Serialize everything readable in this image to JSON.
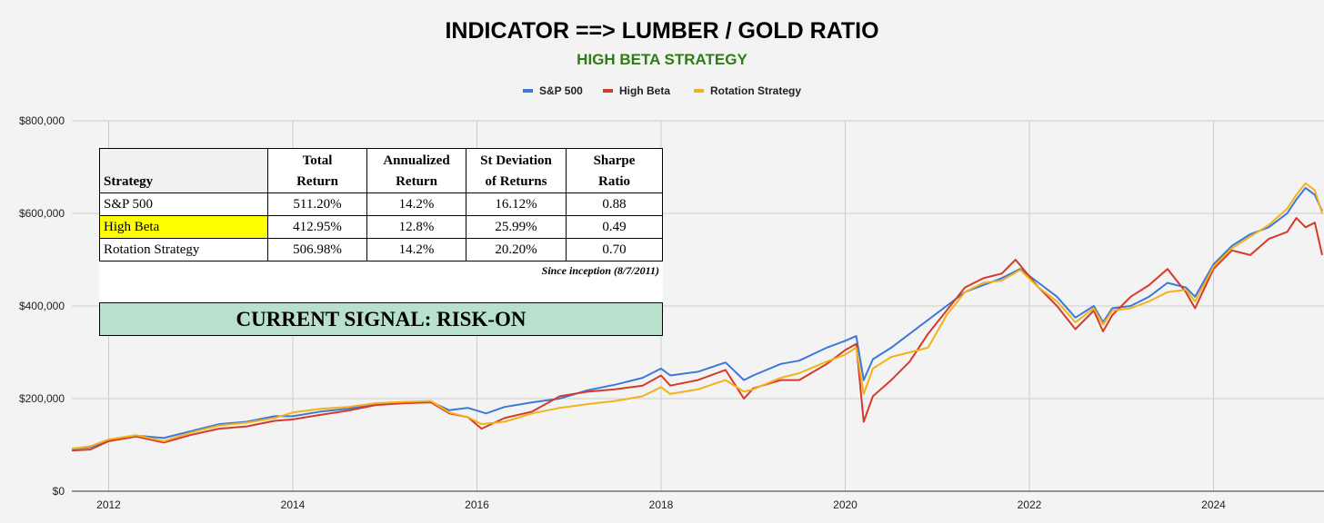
{
  "chart_data": {
    "type": "line",
    "title": "INDICATOR ==> LUMBER / GOLD RATIO",
    "subtitle": "HIGH BETA STRATEGY",
    "xlabel": "",
    "ylabel": "",
    "ylim": [
      0,
      800000
    ],
    "y_ticks": [
      0,
      200000,
      400000,
      600000,
      800000
    ],
    "y_tick_labels": [
      "$0",
      "$200,000",
      "$400,000",
      "$600,000",
      "$800,000"
    ],
    "xlim": [
      2011.6,
      2025.2
    ],
    "x_ticks": [
      2012,
      2014,
      2016,
      2018,
      2020,
      2022,
      2024
    ],
    "x_tick_labels": [
      "2012",
      "2014",
      "2016",
      "2018",
      "2020",
      "2022",
      "2024"
    ],
    "grid": true,
    "legend_position": "top",
    "series": [
      {
        "name": "S&P 500",
        "color": "#3c78d8",
        "points": [
          [
            2011.6,
            92000
          ],
          [
            2011.8,
            95000
          ],
          [
            2012.0,
            110000
          ],
          [
            2012.3,
            120000
          ],
          [
            2012.6,
            115000
          ],
          [
            2012.9,
            130000
          ],
          [
            2013.2,
            145000
          ],
          [
            2013.5,
            150000
          ],
          [
            2013.8,
            162000
          ],
          [
            2014.0,
            162000
          ],
          [
            2014.3,
            172000
          ],
          [
            2014.6,
            178000
          ],
          [
            2014.9,
            188000
          ],
          [
            2015.2,
            192000
          ],
          [
            2015.5,
            193000
          ],
          [
            2015.7,
            175000
          ],
          [
            2015.9,
            180000
          ],
          [
            2016.1,
            168000
          ],
          [
            2016.3,
            182000
          ],
          [
            2016.6,
            192000
          ],
          [
            2016.9,
            200000
          ],
          [
            2017.2,
            218000
          ],
          [
            2017.5,
            230000
          ],
          [
            2017.8,
            245000
          ],
          [
            2018.0,
            265000
          ],
          [
            2018.1,
            250000
          ],
          [
            2018.4,
            258000
          ],
          [
            2018.7,
            278000
          ],
          [
            2018.9,
            240000
          ],
          [
            2019.0,
            250000
          ],
          [
            2019.3,
            275000
          ],
          [
            2019.5,
            282000
          ],
          [
            2019.8,
            310000
          ],
          [
            2020.0,
            325000
          ],
          [
            2020.12,
            335000
          ],
          [
            2020.2,
            240000
          ],
          [
            2020.3,
            285000
          ],
          [
            2020.5,
            310000
          ],
          [
            2020.7,
            340000
          ],
          [
            2020.9,
            370000
          ],
          [
            2021.1,
            400000
          ],
          [
            2021.3,
            430000
          ],
          [
            2021.5,
            445000
          ],
          [
            2021.7,
            460000
          ],
          [
            2021.9,
            480000
          ],
          [
            2022.1,
            450000
          ],
          [
            2022.3,
            420000
          ],
          [
            2022.5,
            375000
          ],
          [
            2022.7,
            400000
          ],
          [
            2022.8,
            365000
          ],
          [
            2022.9,
            395000
          ],
          [
            2023.1,
            400000
          ],
          [
            2023.3,
            420000
          ],
          [
            2023.5,
            450000
          ],
          [
            2023.7,
            440000
          ],
          [
            2023.8,
            420000
          ],
          [
            2024.0,
            490000
          ],
          [
            2024.2,
            530000
          ],
          [
            2024.4,
            555000
          ],
          [
            2024.6,
            570000
          ],
          [
            2024.8,
            600000
          ],
          [
            2024.9,
            630000
          ],
          [
            2025.0,
            655000
          ],
          [
            2025.1,
            640000
          ],
          [
            2025.18,
            605000
          ]
        ]
      },
      {
        "name": "High Beta",
        "color": "#d63a2a",
        "points": [
          [
            2011.6,
            88000
          ],
          [
            2011.8,
            90000
          ],
          [
            2012.0,
            108000
          ],
          [
            2012.3,
            118000
          ],
          [
            2012.6,
            105000
          ],
          [
            2012.9,
            122000
          ],
          [
            2013.2,
            135000
          ],
          [
            2013.5,
            140000
          ],
          [
            2013.8,
            152000
          ],
          [
            2014.0,
            155000
          ],
          [
            2014.3,
            165000
          ],
          [
            2014.6,
            174000
          ],
          [
            2014.9,
            186000
          ],
          [
            2015.2,
            190000
          ],
          [
            2015.5,
            192000
          ],
          [
            2015.7,
            168000
          ],
          [
            2015.9,
            160000
          ],
          [
            2016.05,
            135000
          ],
          [
            2016.3,
            158000
          ],
          [
            2016.6,
            172000
          ],
          [
            2016.9,
            205000
          ],
          [
            2017.2,
            215000
          ],
          [
            2017.5,
            220000
          ],
          [
            2017.8,
            228000
          ],
          [
            2018.0,
            250000
          ],
          [
            2018.1,
            228000
          ],
          [
            2018.4,
            240000
          ],
          [
            2018.7,
            262000
          ],
          [
            2018.9,
            200000
          ],
          [
            2019.0,
            222000
          ],
          [
            2019.3,
            240000
          ],
          [
            2019.5,
            240000
          ],
          [
            2019.8,
            275000
          ],
          [
            2020.0,
            305000
          ],
          [
            2020.12,
            318000
          ],
          [
            2020.2,
            150000
          ],
          [
            2020.3,
            205000
          ],
          [
            2020.5,
            240000
          ],
          [
            2020.7,
            280000
          ],
          [
            2020.9,
            340000
          ],
          [
            2021.1,
            390000
          ],
          [
            2021.3,
            440000
          ],
          [
            2021.5,
            460000
          ],
          [
            2021.7,
            470000
          ],
          [
            2021.85,
            500000
          ],
          [
            2022.1,
            440000
          ],
          [
            2022.3,
            400000
          ],
          [
            2022.5,
            350000
          ],
          [
            2022.7,
            390000
          ],
          [
            2022.8,
            345000
          ],
          [
            2022.9,
            380000
          ],
          [
            2023.1,
            420000
          ],
          [
            2023.3,
            445000
          ],
          [
            2023.5,
            480000
          ],
          [
            2023.7,
            430000
          ],
          [
            2023.8,
            395000
          ],
          [
            2024.0,
            480000
          ],
          [
            2024.2,
            520000
          ],
          [
            2024.4,
            510000
          ],
          [
            2024.6,
            545000
          ],
          [
            2024.8,
            560000
          ],
          [
            2024.9,
            590000
          ],
          [
            2025.0,
            570000
          ],
          [
            2025.1,
            580000
          ],
          [
            2025.18,
            510000
          ]
        ]
      },
      {
        "name": "Rotation Strategy",
        "color": "#f2b21b",
        "points": [
          [
            2011.6,
            92000
          ],
          [
            2011.8,
            97000
          ],
          [
            2012.0,
            112000
          ],
          [
            2012.3,
            121000
          ],
          [
            2012.6,
            108000
          ],
          [
            2012.9,
            127000
          ],
          [
            2013.2,
            142000
          ],
          [
            2013.5,
            148000
          ],
          [
            2013.8,
            158000
          ],
          [
            2014.0,
            170000
          ],
          [
            2014.3,
            178000
          ],
          [
            2014.6,
            182000
          ],
          [
            2014.9,
            190000
          ],
          [
            2015.2,
            193000
          ],
          [
            2015.5,
            195000
          ],
          [
            2015.7,
            170000
          ],
          [
            2015.9,
            160000
          ],
          [
            2016.05,
            145000
          ],
          [
            2016.3,
            150000
          ],
          [
            2016.6,
            168000
          ],
          [
            2016.9,
            180000
          ],
          [
            2017.2,
            188000
          ],
          [
            2017.5,
            195000
          ],
          [
            2017.8,
            205000
          ],
          [
            2018.0,
            225000
          ],
          [
            2018.1,
            210000
          ],
          [
            2018.4,
            220000
          ],
          [
            2018.7,
            240000
          ],
          [
            2018.9,
            215000
          ],
          [
            2019.0,
            220000
          ],
          [
            2019.3,
            245000
          ],
          [
            2019.5,
            255000
          ],
          [
            2019.8,
            280000
          ],
          [
            2020.0,
            295000
          ],
          [
            2020.12,
            310000
          ],
          [
            2020.2,
            210000
          ],
          [
            2020.3,
            265000
          ],
          [
            2020.5,
            290000
          ],
          [
            2020.7,
            300000
          ],
          [
            2020.9,
            310000
          ],
          [
            2021.1,
            380000
          ],
          [
            2021.3,
            430000
          ],
          [
            2021.5,
            450000
          ],
          [
            2021.7,
            455000
          ],
          [
            2021.9,
            478000
          ],
          [
            2022.1,
            440000
          ],
          [
            2022.3,
            410000
          ],
          [
            2022.5,
            365000
          ],
          [
            2022.7,
            395000
          ],
          [
            2022.8,
            360000
          ],
          [
            2022.9,
            390000
          ],
          [
            2023.1,
            395000
          ],
          [
            2023.3,
            410000
          ],
          [
            2023.5,
            430000
          ],
          [
            2023.7,
            435000
          ],
          [
            2023.8,
            410000
          ],
          [
            2024.0,
            485000
          ],
          [
            2024.2,
            525000
          ],
          [
            2024.4,
            550000
          ],
          [
            2024.6,
            575000
          ],
          [
            2024.8,
            610000
          ],
          [
            2024.9,
            640000
          ],
          [
            2025.0,
            665000
          ],
          [
            2025.1,
            650000
          ],
          [
            2025.18,
            600000
          ]
        ]
      }
    ]
  },
  "table": {
    "headers": [
      [
        "",
        "Strategy"
      ],
      [
        "Total",
        "Return"
      ],
      [
        "Annualized",
        "Return"
      ],
      [
        "St Deviation",
        "of Returns"
      ],
      [
        "Sharpe",
        "Ratio"
      ]
    ],
    "rows": [
      {
        "strategy": "S&P 500",
        "total_return": "511.20%",
        "annualized_return": "14.2%",
        "st_deviation": "16.12%",
        "sharpe_ratio": "0.88"
      },
      {
        "strategy": "High Beta",
        "total_return": "412.95%",
        "annualized_return": "12.8%",
        "st_deviation": "25.99%",
        "sharpe_ratio": "0.49"
      },
      {
        "strategy": "Rotation Strategy",
        "total_return": "506.98%",
        "annualized_return": "14.2%",
        "st_deviation": "20.20%",
        "sharpe_ratio": "0.70"
      }
    ],
    "highlight_color": "#ffff00",
    "footnote": "Since inception (8/7/2011)",
    "signal": "CURRENT SIGNAL: RISK-ON",
    "signal_color": "#b7e1cd"
  }
}
